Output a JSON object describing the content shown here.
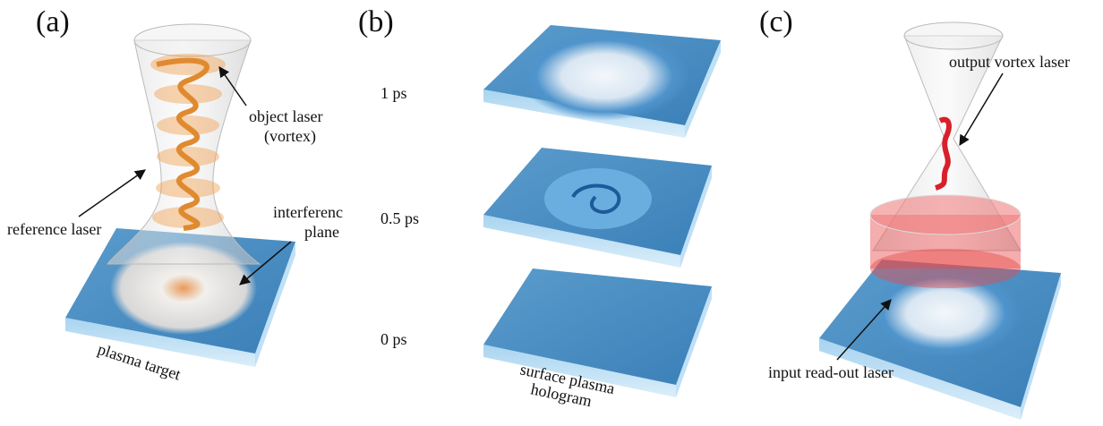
{
  "panels": [
    {
      "label": "(a)",
      "annotations": [
        {
          "lines": [
            "object laser",
            "(vortex)"
          ]
        },
        {
          "lines": [
            "reference laser"
          ]
        },
        {
          "lines": [
            "interferenc",
            "plane"
          ]
        },
        {
          "lines": [
            "plasma target"
          ]
        }
      ]
    },
    {
      "label": "(b)",
      "time_labels": [
        "1 ps",
        "0.5 ps",
        "0 ps"
      ],
      "annotations": [
        {
          "lines": [
            "surface plasma",
            "hologram"
          ]
        }
      ]
    },
    {
      "label": "(c)",
      "annotations": [
        {
          "lines": [
            "output vortex laser"
          ]
        },
        {
          "lines": [
            "input read-out laser"
          ]
        }
      ]
    }
  ]
}
